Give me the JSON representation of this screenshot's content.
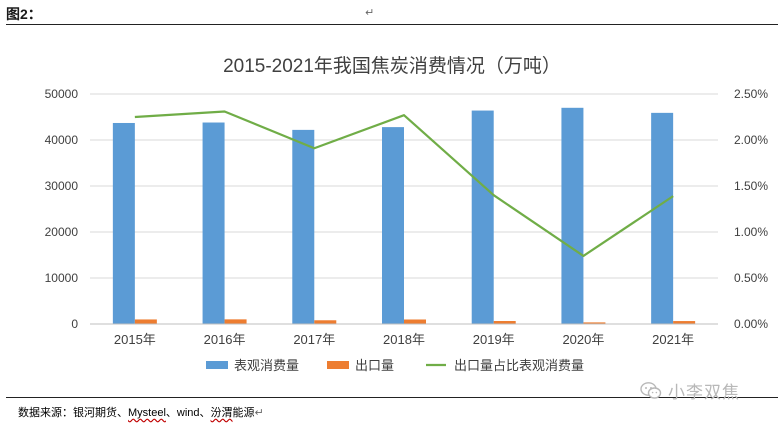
{
  "figure_label": "图2：",
  "source_text": {
    "prefix": "数据来源：银河期货、",
    "mysteel": "Mysteel",
    "mid": "、wind、",
    "fenwei": "汾渭",
    "suffix": "能源"
  },
  "watermark_text": "小李双焦",
  "chart_data": {
    "type": "bar",
    "title": "2015-2021年我国焦炭消费情况（万吨）",
    "categories": [
      "2015年",
      "2016年",
      "2017年",
      "2018年",
      "2019年",
      "2020年",
      "2021年"
    ],
    "y_left": {
      "min": 0,
      "max": 50000,
      "step": 10000,
      "ticks": [
        "0",
        "10000",
        "20000",
        "30000",
        "40000",
        "50000"
      ]
    },
    "y_right": {
      "min": 0,
      "max": 0.025,
      "step": 0.005,
      "ticks": [
        "0.00%",
        "0.50%",
        "1.00%",
        "1.50%",
        "2.00%",
        "2.50%"
      ]
    },
    "series": [
      {
        "name": "表观消费量",
        "type": "bar",
        "axis": "left",
        "color": "#5b9bd5",
        "values": [
          43700,
          43800,
          42200,
          42800,
          46400,
          47000,
          45900
        ]
      },
      {
        "name": "出口量",
        "type": "bar",
        "axis": "left",
        "color": "#ed7d31",
        "values": [
          990,
          1010,
          810,
          980,
          650,
          350,
          640
        ]
      },
      {
        "name": "出口量占比表观消费量",
        "type": "line",
        "axis": "right",
        "color": "#70ad47",
        "values": [
          0.0225,
          0.0231,
          0.0191,
          0.0227,
          0.014,
          0.0074,
          0.0139
        ]
      }
    ],
    "grid": true,
    "legend_position": "bottom"
  }
}
